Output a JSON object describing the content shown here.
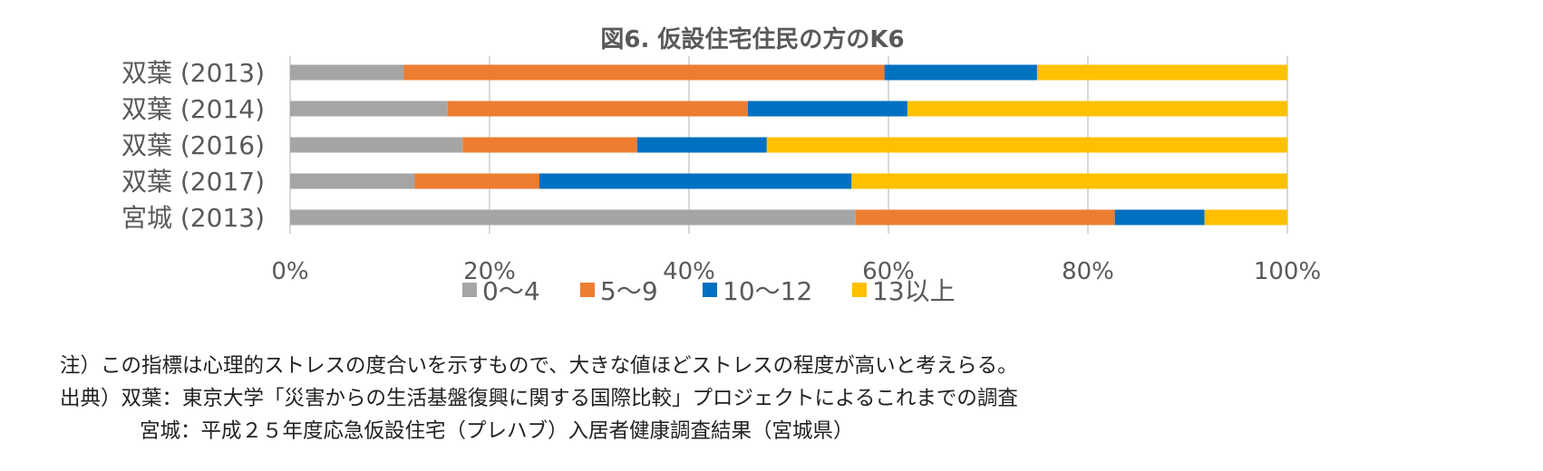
{
  "chart_data": {
    "type": "bar",
    "orientation": "horizontal",
    "stacked": "percent",
    "title": "図6. 仮設住宅住民の方のK6",
    "categories": [
      "双葉 (2013)",
      "双葉 (2014)",
      "双葉 (2016)",
      "双葉 (2017)",
      "宮城 (2013)"
    ],
    "series": [
      {
        "name": "0～4",
        "color": "#a5a5a5",
        "values": [
          11.4,
          15.8,
          17.3,
          12.5,
          56.7
        ]
      },
      {
        "name": "5～9",
        "color": "#ed7d31",
        "values": [
          48.2,
          30.1,
          17.5,
          12.5,
          26.0
        ]
      },
      {
        "name": "10～12",
        "color": "#0070c0",
        "values": [
          15.3,
          16.0,
          13.0,
          31.3,
          9.0
        ]
      },
      {
        "name": "13以上",
        "color": "#ffc000",
        "values": [
          25.1,
          38.1,
          52.2,
          43.7,
          8.3
        ]
      }
    ],
    "xlim": [
      0,
      100
    ],
    "xticks": [
      "0%",
      "20%",
      "40%",
      "60%",
      "80%",
      "100%"
    ],
    "grid": true,
    "legend_position": "bottom"
  },
  "notes": {
    "line1": "注）この指標は心理的ストレスの度合いを示すもので、大きな値ほどストレスの程度が高いと考えらる。",
    "line2": "出典）双葉：東京大学「災害からの生活基盤復興に関する国際比較」プロジェクトによるこれまでの調査",
    "line3": "宮城：平成２５年度応急仮設住宅（プレハブ）入居者健康調査結果（宮城県）"
  }
}
